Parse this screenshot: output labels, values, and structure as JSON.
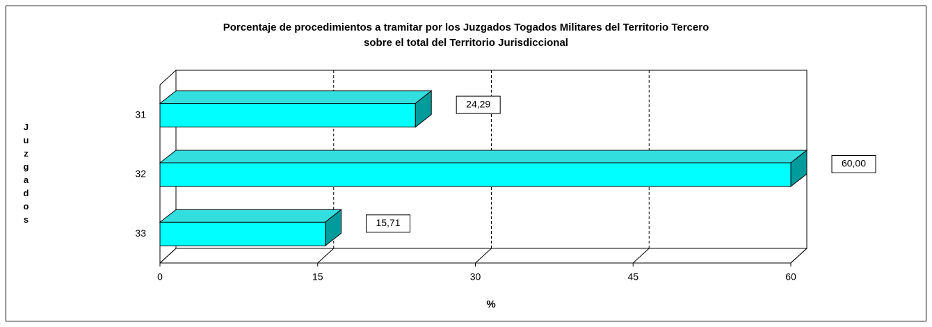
{
  "chart_data": {
    "type": "bar3d_horizontal",
    "title": [
      "Porcentaje de procedimientos a tramitar por los Juzgados Togados Militares del Territorio Tercero",
      "sobre el total del Territorio Jurisdiccional"
    ],
    "x_label": "%",
    "y_label": "Juzgados",
    "categories": [
      "31",
      "32",
      "33"
    ],
    "values": [
      24.29,
      60,
      15.71
    ],
    "value_labels": [
      "24,29",
      "60,00",
      "15,71"
    ],
    "color": "#00ffff",
    "xlim": [
      0,
      60
    ],
    "xticks": [
      0,
      15,
      30,
      45,
      60
    ],
    "grid": true
  }
}
